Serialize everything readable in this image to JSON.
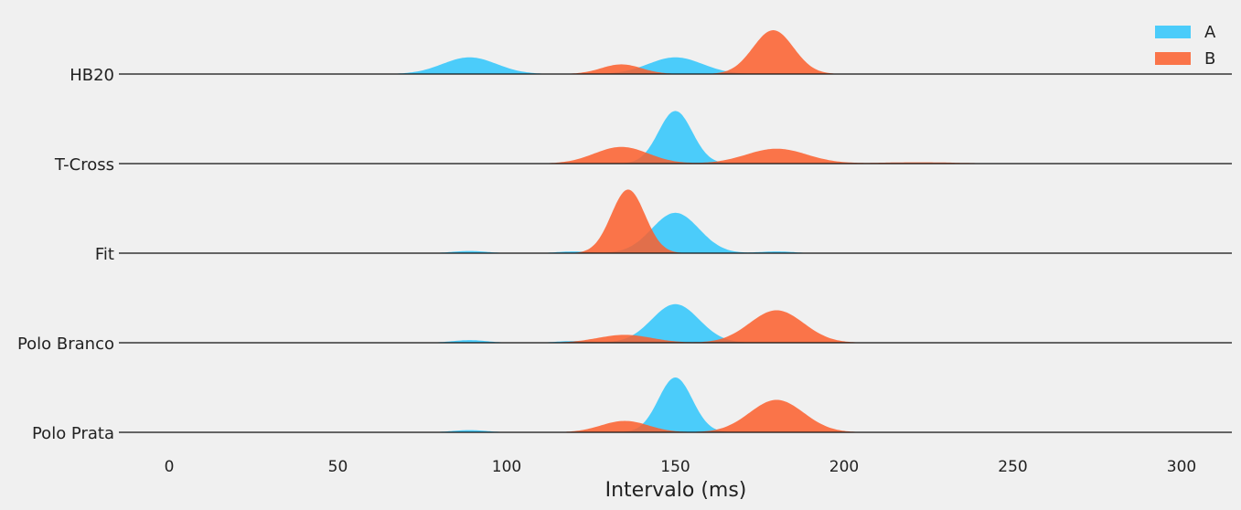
{
  "chart_data": {
    "type": "ridgeline-density",
    "xlabel": "Intervalo (ms)",
    "xlim": [
      -15,
      315
    ],
    "x_ticks": [
      0,
      50,
      100,
      150,
      200,
      250,
      300
    ],
    "x_range": [
      0,
      300
    ],
    "legend": {
      "placement": "top-right",
      "entries": [
        "A",
        "B"
      ]
    },
    "colors": {
      "A": "#2ec5fb",
      "B": "#fc5e2c",
      "background": "#f0f0f0",
      "baseline": "#111111"
    },
    "rows": [
      {
        "label": "HB20",
        "A": [
          {
            "mu": 89,
            "sigma": 8,
            "h": 0.38
          },
          {
            "mu": 150,
            "sigma": 8,
            "h": 0.38
          }
        ],
        "B": [
          {
            "mu": 134,
            "sigma": 6,
            "h": 0.22
          },
          {
            "mu": 179,
            "sigma": 6,
            "h": 1.0
          }
        ]
      },
      {
        "label": "T-Cross",
        "A": [
          {
            "mu": 150,
            "sigma": 5,
            "h": 1.2
          }
        ],
        "B": [
          {
            "mu": 134,
            "sigma": 8,
            "h": 0.38
          },
          {
            "mu": 180,
            "sigma": 9,
            "h": 0.34
          },
          {
            "mu": 222,
            "sigma": 12,
            "h": 0.03
          }
        ]
      },
      {
        "label": "Fit",
        "A": [
          {
            "mu": 89,
            "sigma": 5,
            "h": 0.05
          },
          {
            "mu": 120,
            "sigma": 5,
            "h": 0.04
          },
          {
            "mu": 150,
            "sigma": 7,
            "h": 0.92
          },
          {
            "mu": 180,
            "sigma": 5,
            "h": 0.04
          }
        ],
        "B": [
          {
            "mu": 136,
            "sigma": 5,
            "h": 1.45
          }
        ]
      },
      {
        "label": "Polo Branco",
        "A": [
          {
            "mu": 89,
            "sigma": 5,
            "h": 0.06
          },
          {
            "mu": 120,
            "sigma": 5,
            "h": 0.04
          },
          {
            "mu": 150,
            "sigma": 7,
            "h": 0.88
          }
        ],
        "B": [
          {
            "mu": 135,
            "sigma": 8,
            "h": 0.18
          },
          {
            "mu": 180,
            "sigma": 8,
            "h": 0.74
          }
        ]
      },
      {
        "label": "Polo Prata",
        "A": [
          {
            "mu": 89,
            "sigma": 5,
            "h": 0.05
          },
          {
            "mu": 150,
            "sigma": 5,
            "h": 1.25
          }
        ],
        "B": [
          {
            "mu": 135,
            "sigma": 7,
            "h": 0.26
          },
          {
            "mu": 180,
            "sigma": 8,
            "h": 0.74
          }
        ]
      }
    ]
  }
}
